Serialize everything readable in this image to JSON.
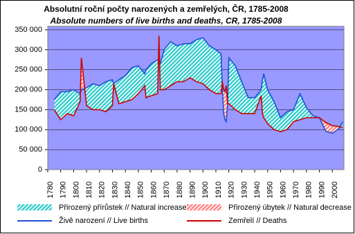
{
  "chart_data": {
    "type": "line",
    "title": "Absolutní roční počty narozených a zemřelých, ČR, 1785-2008",
    "subtitle": "Absolute numbers of live births and deaths, CR, 1785-2008",
    "x": [
      1785,
      1790,
      1795,
      1800,
      1805,
      1806,
      1810,
      1815,
      1820,
      1825,
      1830,
      1831,
      1835,
      1840,
      1845,
      1850,
      1855,
      1856,
      1860,
      1865,
      1866,
      1867,
      1870,
      1875,
      1880,
      1885,
      1890,
      1895,
      1900,
      1905,
      1910,
      1914,
      1915,
      1916,
      1917,
      1918,
      1919,
      1920,
      1925,
      1930,
      1935,
      1940,
      1945,
      1946,
      1947,
      1950,
      1955,
      1960,
      1965,
      1970,
      1975,
      1980,
      1985,
      1990,
      1995,
      2000,
      2005,
      2008
    ],
    "series": [
      {
        "name": "Živě narození // Live births",
        "color": "#1f4fd8",
        "values": [
          175000,
          195000,
          195000,
          200000,
          190000,
          200000,
          205000,
          215000,
          210000,
          220000,
          225000,
          215000,
          225000,
          235000,
          255000,
          260000,
          240000,
          250000,
          265000,
          275000,
          270000,
          265000,
          300000,
          320000,
          310000,
          315000,
          315000,
          325000,
          330000,
          310000,
          300000,
          290000,
          205000,
          140000,
          125000,
          120000,
          160000,
          280000,
          260000,
          220000,
          180000,
          180000,
          200000,
          225000,
          240000,
          200000,
          170000,
          130000,
          145000,
          150000,
          190000,
          155000,
          135000,
          130000,
          96000,
          91000,
          102000,
          120000
        ]
      },
      {
        "name": "Zemřelí // Deaths",
        "color": "#cc0000",
        "values": [
          150000,
          125000,
          140000,
          135000,
          170000,
          280000,
          160000,
          150000,
          150000,
          145000,
          160000,
          215000,
          165000,
          170000,
          175000,
          190000,
          210000,
          180000,
          185000,
          190000,
          335000,
          200000,
          200000,
          210000,
          220000,
          220000,
          230000,
          220000,
          215000,
          200000,
          190000,
          190000,
          220000,
          200000,
          195000,
          210000,
          165000,
          165000,
          150000,
          140000,
          140000,
          140000,
          185000,
          140000,
          130000,
          115000,
          100000,
          95000,
          100000,
          120000,
          125000,
          130000,
          130000,
          130000,
          118000,
          110000,
          108000,
          105000
        ]
      }
    ],
    "areas": [
      {
        "name": "Přirozený přírůstek // Natural increase",
        "color": "#33cccc"
      },
      {
        "name": "Přirozený úbytek // Natural decrease",
        "color": "#ff8080"
      }
    ],
    "xlim": [
      1780,
      2009
    ],
    "xticks": [
      1780,
      1790,
      1800,
      1810,
      1820,
      1830,
      1840,
      1850,
      1860,
      1870,
      1880,
      1890,
      1900,
      1910,
      1920,
      1930,
      1940,
      1950,
      1960,
      1970,
      1980,
      1990,
      2000
    ],
    "ylim": [
      0,
      350000
    ],
    "yticks": [
      {
        "value": 0,
        "label": "0"
      },
      {
        "value": 50000,
        "label": "50 000"
      },
      {
        "value": 100000,
        "label": "100 000"
      },
      {
        "value": 150000,
        "label": "150 000"
      },
      {
        "value": 200000,
        "label": "200 000"
      },
      {
        "value": 250000,
        "label": "250 000"
      },
      {
        "value": 300000,
        "label": "300 000"
      },
      {
        "value": 350000,
        "label": "350 000"
      }
    ],
    "plot_background": "#9999ff"
  }
}
